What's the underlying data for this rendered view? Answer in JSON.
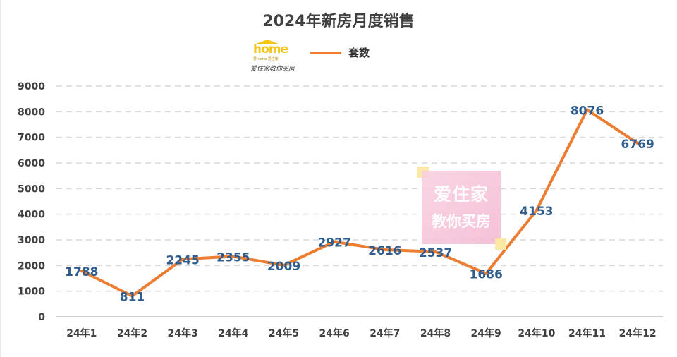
{
  "title": "2024年新房月度销售",
  "legend": {
    "label": "套数"
  },
  "logo": {
    "word": "home",
    "sub": "爱home 爱住家",
    "script": "爱住家教你买房"
  },
  "watermark": {
    "line1": "爱住家",
    "line2": "教你买房"
  },
  "colors": {
    "line": "#ed7d31",
    "data_label": "#2e5d8e",
    "grid": "#d9d9d9",
    "text": "#404040"
  },
  "chart_data": {
    "type": "line",
    "title": "2024年新房月度销售",
    "xlabel": "",
    "ylabel": "",
    "categories": [
      "24年1",
      "24年2",
      "24年3",
      "24年4",
      "24年5",
      "24年6",
      "24年7",
      "24年8",
      "24年9",
      "24年10",
      "24年11",
      "24年12"
    ],
    "series": [
      {
        "name": "套数",
        "values": [
          1788,
          811,
          2245,
          2355,
          2009,
          2927,
          2616,
          2537,
          1686,
          4153,
          8076,
          6769
        ]
      }
    ],
    "ylim": [
      0,
      9000
    ],
    "yticks": [
      0,
      1000,
      2000,
      3000,
      4000,
      5000,
      6000,
      7000,
      8000,
      9000
    ],
    "grid": true,
    "legend_position": "top"
  }
}
